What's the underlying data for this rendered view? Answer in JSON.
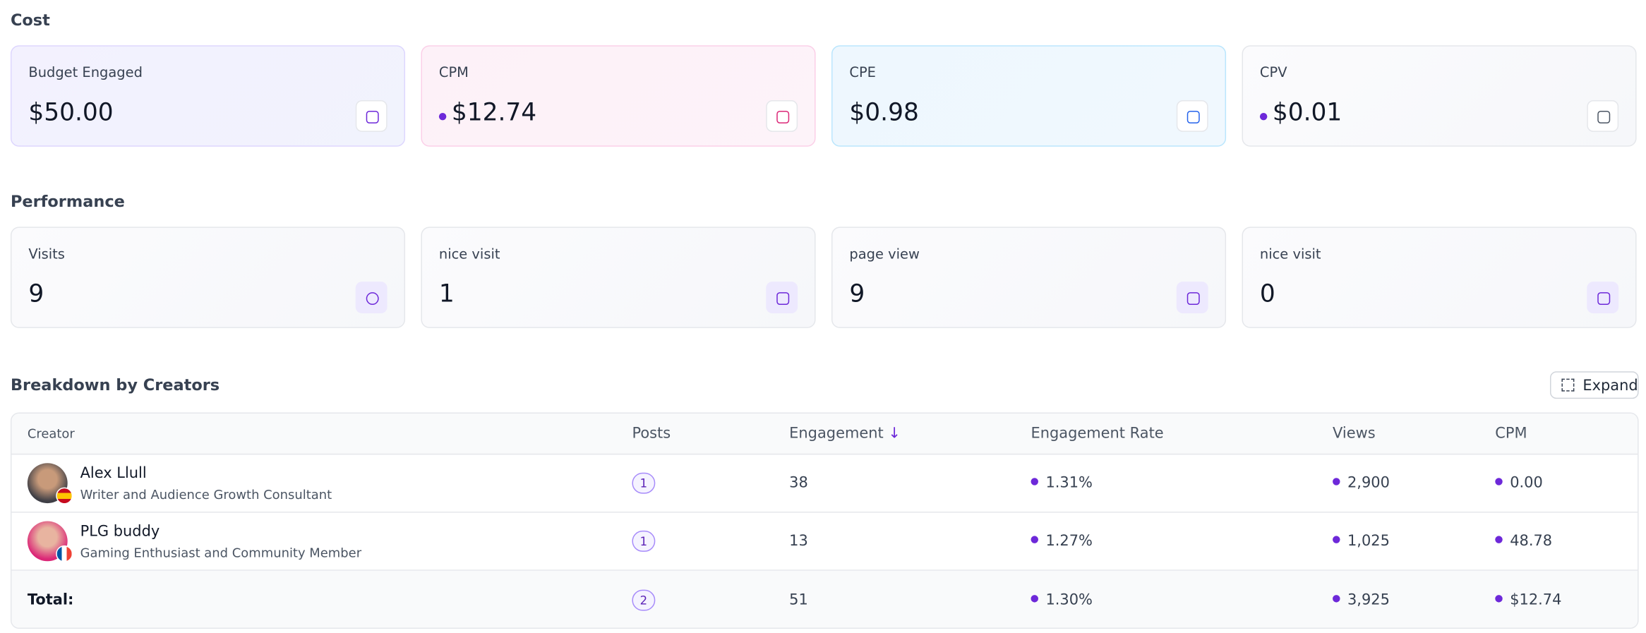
{
  "cost": {
    "title": "Cost",
    "cards": [
      {
        "label": "Budget Engaged",
        "value": "$50.00"
      },
      {
        "label": "CPM",
        "value": "$12.74"
      },
      {
        "label": "CPE",
        "value": "$0.98"
      },
      {
        "label": "CPV",
        "value": "$0.01"
      }
    ]
  },
  "performance": {
    "title": "Performance",
    "cards": [
      {
        "label": "Visits",
        "value": "9"
      },
      {
        "label": "nice visit",
        "value": "1"
      },
      {
        "label": "page view",
        "value": "9"
      },
      {
        "label": "nice visit",
        "value": "0"
      }
    ]
  },
  "breakdown": {
    "title": "Breakdown by Creators",
    "expand": "Expand",
    "columns": [
      "Creator",
      "Posts",
      "Engagement",
      "Engagement Rate",
      "Views",
      "CPM"
    ],
    "rows": [
      {
        "name": "Alex Llull",
        "subtitle": "Writer and Audience Growth Consultant",
        "posts": "1",
        "engagement": "38",
        "rate": "1.31%",
        "views": "2,900",
        "cpm": "0.00"
      },
      {
        "name": "PLG buddy",
        "subtitle": "Gaming Enthusiast and Community Member",
        "posts": "1",
        "engagement": "13",
        "rate": "1.27%",
        "views": "1,025",
        "cpm": "48.78"
      }
    ],
    "total": {
      "label": "Total:",
      "posts": "2",
      "engagement": "51",
      "rate": "1.30%",
      "views": "3,925",
      "cpm": "$12.74"
    }
  }
}
